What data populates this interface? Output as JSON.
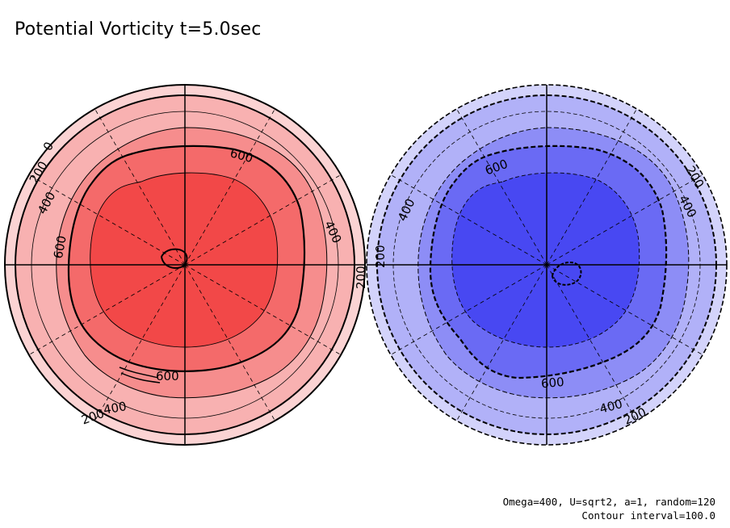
{
  "title": "Potential Vorticity t=5.0sec",
  "footer": {
    "params": "Omega=400, U=sqrt2, a=1, random=120",
    "interval": "Contour interval=100.0"
  },
  "colors": {
    "red_levels": [
      "#fbd3d3",
      "#f8b1b1",
      "#f68d8d",
      "#f46a6a",
      "#f24848"
    ],
    "blue_levels": [
      "#d3d3fb",
      "#b1b1f8",
      "#8d8df6",
      "#6a6af4",
      "#4848f2"
    ]
  },
  "left_panel": {
    "labels": [
      {
        "text": "0"
      },
      {
        "text": "200"
      },
      {
        "text": "400"
      },
      {
        "text": "600"
      },
      {
        "text": "600"
      },
      {
        "text": "400"
      },
      {
        "text": "200"
      },
      {
        "text": "600"
      },
      {
        "text": "400"
      },
      {
        "text": "200"
      }
    ]
  },
  "right_panel": {
    "labels": [
      {
        "text": "200"
      },
      {
        "text": "400"
      },
      {
        "text": "600"
      },
      {
        "text": "200"
      },
      {
        "text": "400"
      },
      {
        "text": "600"
      },
      {
        "text": "400"
      },
      {
        "text": "200"
      }
    ]
  }
}
